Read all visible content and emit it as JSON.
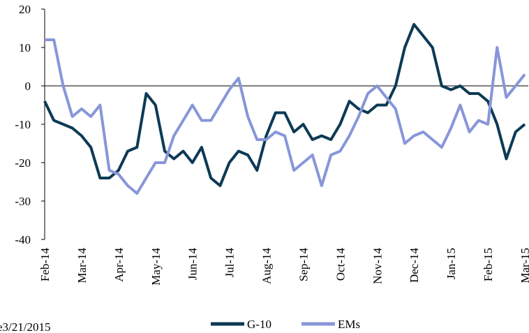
{
  "chart_data": {
    "type": "line",
    "categories": [
      "Feb-14",
      null,
      null,
      null,
      "Mar-14",
      null,
      null,
      null,
      "Apr-14",
      null,
      null,
      null,
      "May-14",
      null,
      null,
      null,
      "Jun-14",
      null,
      null,
      null,
      "Jul-14",
      null,
      null,
      null,
      "Aug-14",
      null,
      null,
      null,
      "Sep-14",
      null,
      null,
      null,
      "Oct-14",
      null,
      null,
      null,
      "Nov-14",
      null,
      null,
      null,
      "Dec-14",
      null,
      null,
      null,
      "Jan-15",
      null,
      null,
      null,
      "Feb-15",
      null,
      null,
      null,
      "Mar-15"
    ],
    "series": [
      {
        "name": "G-10",
        "color": "#0d3a55",
        "values": [
          -4,
          -9,
          -10,
          -11,
          -13,
          -16,
          -24,
          -24,
          -22,
          -17,
          -16,
          -2,
          -5,
          -17,
          -19,
          -17,
          -20,
          -16,
          -24,
          -26,
          -20,
          -17,
          -18,
          -22,
          -13,
          -7,
          -7,
          -12,
          -10,
          -14,
          -13,
          -14,
          -10,
          -4,
          -6,
          -7,
          -5,
          -5,
          0,
          10,
          16,
          13,
          10,
          0,
          -1,
          0,
          -2,
          -2,
          -4,
          -10,
          -19,
          -12,
          -10
        ]
      },
      {
        "name": "EMs",
        "color": "#8896d9",
        "values": [
          12,
          12,
          0,
          -8,
          -6,
          -8,
          -5,
          -22,
          -23,
          -26,
          -28,
          -24,
          -20,
          -20,
          -13,
          -9,
          -5,
          -9,
          -9,
          -5,
          -1,
          2,
          -8,
          -14,
          -14,
          -12,
          -13,
          -22,
          -20,
          -18,
          -26,
          -18,
          -17,
          -13,
          -8,
          -2,
          0,
          -3,
          -6,
          -15,
          -13,
          -12,
          -14,
          -16,
          -11,
          -5,
          -12,
          -9,
          -10,
          10,
          -3,
          0,
          3
        ]
      }
    ],
    "ylim": [
      -40,
      20
    ],
    "yticks": [
      -40,
      -30,
      -20,
      -10,
      0,
      10,
      20
    ],
    "note": "e3/21/2015"
  }
}
